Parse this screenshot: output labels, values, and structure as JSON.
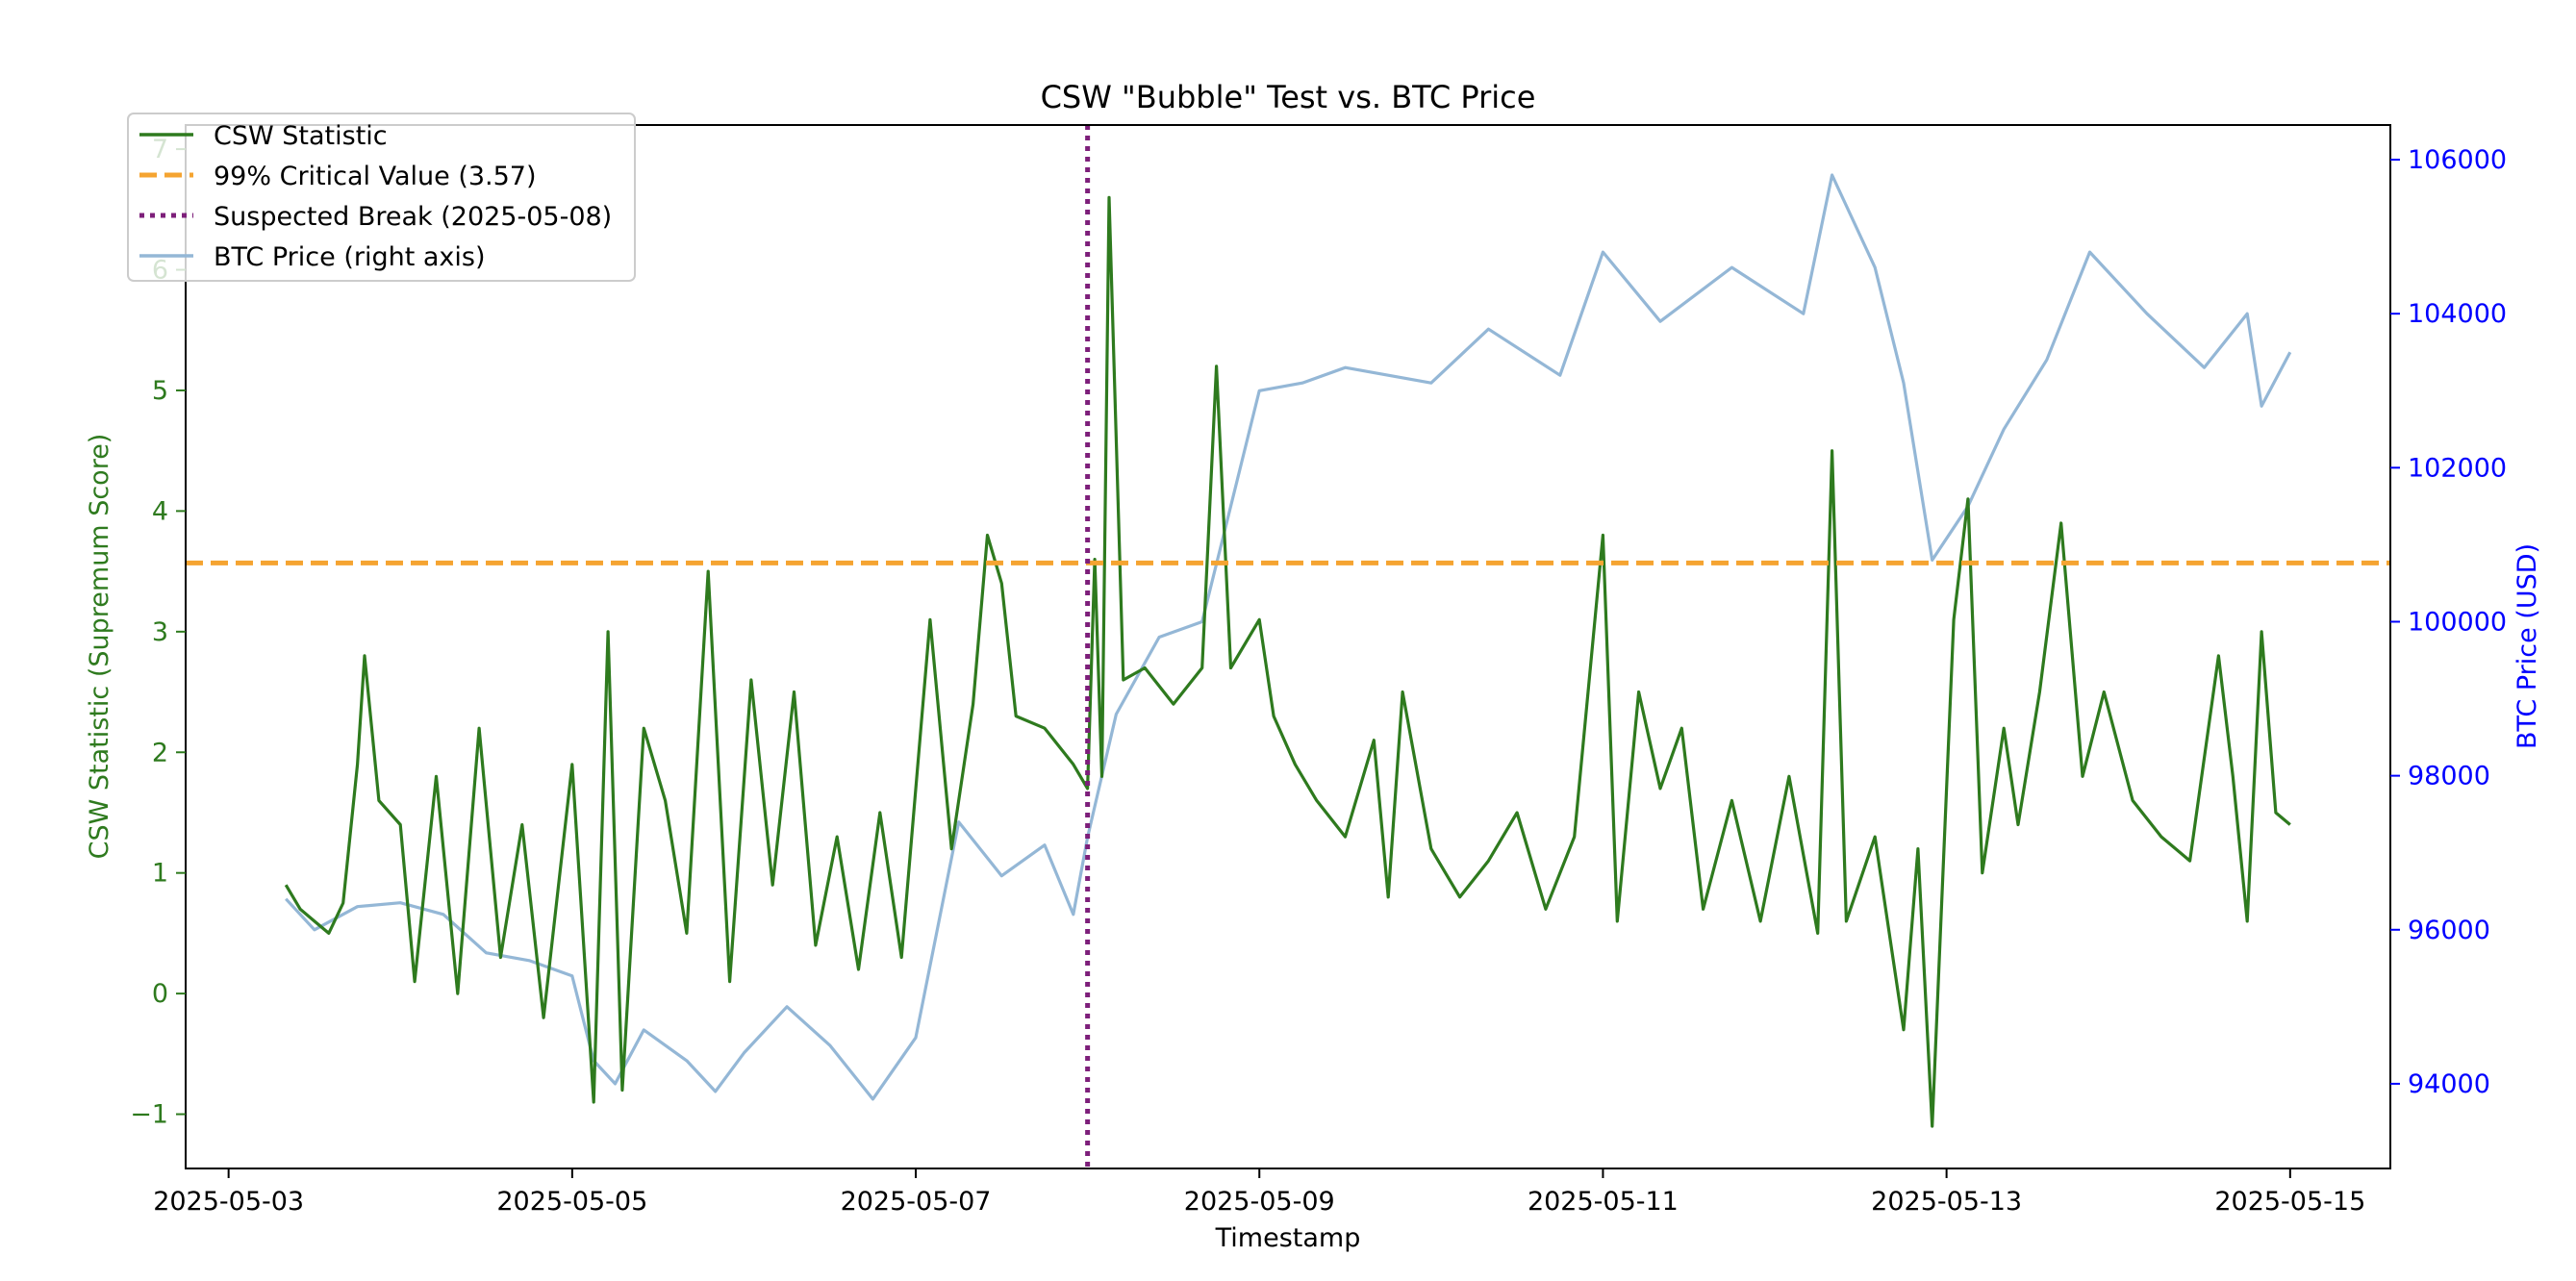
{
  "chart_data": {
    "type": "line",
    "title": "CSW \"Bubble\" Test vs. BTC Price",
    "xlabel": "Timestamp",
    "ylabel_left": "CSW Statistic (Supremum Score)",
    "ylabel_right": "BTC Price (USD)",
    "x_range": [
      "2025-05-02 18:00",
      "2025-05-15 14:00"
    ],
    "x_ticks": [
      "2025-05-03",
      "2025-05-05",
      "2025-05-07",
      "2025-05-09",
      "2025-05-11",
      "2025-05-13",
      "2025-05-15"
    ],
    "ylim_left": [
      -1.45,
      7.2
    ],
    "yticks_left": [
      "−1",
      "0",
      "1",
      "2",
      "3",
      "4",
      "5",
      "6",
      "7"
    ],
    "ylim_right": [
      92900,
      106450
    ],
    "yticks_right": [
      "94000",
      "96000",
      "98000",
      "100000",
      "102000",
      "104000",
      "106000"
    ],
    "grid": false,
    "legend_position": "top-left",
    "critical_value": 3.57,
    "break_date": "2025-05-08 00:00",
    "colors": {
      "csw": "#2e7a1e",
      "critical": "#f5a431",
      "break": "#7d1f7a",
      "btc": "#94b7d6",
      "left_axis": "#2e7a1e",
      "right_axis": "#0000ff"
    },
    "legend": [
      "CSW Statistic",
      "99% Critical Value (3.57)",
      "Suspected Break (2025-05-08)",
      "BTC Price (right axis)"
    ],
    "series": [
      {
        "name": "CSW Statistic",
        "axis": "left",
        "points": [
          [
            "2025-05-03 08:00",
            0.9
          ],
          [
            "2025-05-03 10:00",
            0.7
          ],
          [
            "2025-05-03 12:00",
            0.6
          ],
          [
            "2025-05-03 14:00",
            0.5
          ],
          [
            "2025-05-03 16:00",
            0.75
          ],
          [
            "2025-05-03 18:00",
            1.9
          ],
          [
            "2025-05-03 19:00",
            2.8
          ],
          [
            "2025-05-03 21:00",
            1.6
          ],
          [
            "2025-05-04 00:00",
            1.4
          ],
          [
            "2025-05-04 02:00",
            0.1
          ],
          [
            "2025-05-04 05:00",
            1.8
          ],
          [
            "2025-05-04 08:00",
            0.0
          ],
          [
            "2025-05-04 11:00",
            2.2
          ],
          [
            "2025-05-04 14:00",
            0.3
          ],
          [
            "2025-05-04 17:00",
            1.4
          ],
          [
            "2025-05-04 20:00",
            -0.2
          ],
          [
            "2025-05-05 00:00",
            1.9
          ],
          [
            "2025-05-05 03:00",
            -0.9
          ],
          [
            "2025-05-05 05:00",
            3.0
          ],
          [
            "2025-05-05 07:00",
            -0.8
          ],
          [
            "2025-05-05 10:00",
            2.2
          ],
          [
            "2025-05-05 13:00",
            1.6
          ],
          [
            "2025-05-05 16:00",
            0.5
          ],
          [
            "2025-05-05 19:00",
            3.5
          ],
          [
            "2025-05-05 22:00",
            0.1
          ],
          [
            "2025-05-06 01:00",
            2.6
          ],
          [
            "2025-05-06 04:00",
            0.9
          ],
          [
            "2025-05-06 07:00",
            2.5
          ],
          [
            "2025-05-06 10:00",
            0.4
          ],
          [
            "2025-05-06 13:00",
            1.3
          ],
          [
            "2025-05-06 16:00",
            0.2
          ],
          [
            "2025-05-06 19:00",
            1.5
          ],
          [
            "2025-05-06 22:00",
            0.3
          ],
          [
            "2025-05-07 02:00",
            3.1
          ],
          [
            "2025-05-07 05:00",
            1.2
          ],
          [
            "2025-05-07 08:00",
            2.4
          ],
          [
            "2025-05-07 10:00",
            3.8
          ],
          [
            "2025-05-07 12:00",
            3.4
          ],
          [
            "2025-05-07 14:00",
            2.3
          ],
          [
            "2025-05-07 18:00",
            2.2
          ],
          [
            "2025-05-07 22:00",
            1.9
          ],
          [
            "2025-05-08 00:00",
            1.7
          ],
          [
            "2025-05-08 01:00",
            3.6
          ],
          [
            "2025-05-08 02:00",
            1.8
          ],
          [
            "2025-05-08 03:00",
            6.6
          ],
          [
            "2025-05-08 05:00",
            2.6
          ],
          [
            "2025-05-08 08:00",
            2.7
          ],
          [
            "2025-05-08 12:00",
            2.4
          ],
          [
            "2025-05-08 16:00",
            2.7
          ],
          [
            "2025-05-08 18:00",
            5.2
          ],
          [
            "2025-05-08 20:00",
            2.7
          ],
          [
            "2025-05-09 00:00",
            3.1
          ],
          [
            "2025-05-09 02:00",
            2.3
          ],
          [
            "2025-05-09 05:00",
            1.9
          ],
          [
            "2025-05-09 08:00",
            1.6
          ],
          [
            "2025-05-09 12:00",
            1.3
          ],
          [
            "2025-05-09 16:00",
            2.1
          ],
          [
            "2025-05-09 18:00",
            0.8
          ],
          [
            "2025-05-09 20:00",
            2.5
          ],
          [
            "2025-05-10 00:00",
            1.2
          ],
          [
            "2025-05-10 04:00",
            0.8
          ],
          [
            "2025-05-10 08:00",
            1.1
          ],
          [
            "2025-05-10 12:00",
            1.5
          ],
          [
            "2025-05-10 16:00",
            0.7
          ],
          [
            "2025-05-10 20:00",
            1.3
          ],
          [
            "2025-05-11 00:00",
            3.8
          ],
          [
            "2025-05-11 02:00",
            0.6
          ],
          [
            "2025-05-11 05:00",
            2.5
          ],
          [
            "2025-05-11 08:00",
            1.7
          ],
          [
            "2025-05-11 11:00",
            2.2
          ],
          [
            "2025-05-11 14:00",
            0.7
          ],
          [
            "2025-05-11 18:00",
            1.6
          ],
          [
            "2025-05-11 22:00",
            0.6
          ],
          [
            "2025-05-12 02:00",
            1.8
          ],
          [
            "2025-05-12 06:00",
            0.5
          ],
          [
            "2025-05-12 08:00",
            4.5
          ],
          [
            "2025-05-12 10:00",
            0.6
          ],
          [
            "2025-05-12 14:00",
            1.3
          ],
          [
            "2025-05-12 18:00",
            -0.3
          ],
          [
            "2025-05-12 20:00",
            1.2
          ],
          [
            "2025-05-12 22:00",
            -1.1
          ],
          [
            "2025-05-13 01:00",
            3.1
          ],
          [
            "2025-05-13 03:00",
            4.1
          ],
          [
            "2025-05-13 05:00",
            1.0
          ],
          [
            "2025-05-13 08:00",
            2.2
          ],
          [
            "2025-05-13 10:00",
            1.4
          ],
          [
            "2025-05-13 13:00",
            2.5
          ],
          [
            "2025-05-13 16:00",
            3.9
          ],
          [
            "2025-05-13 19:00",
            1.8
          ],
          [
            "2025-05-13 22:00",
            2.5
          ],
          [
            "2025-05-14 02:00",
            1.6
          ],
          [
            "2025-05-14 06:00",
            1.3
          ],
          [
            "2025-05-14 10:00",
            1.1
          ],
          [
            "2025-05-14 14:00",
            2.8
          ],
          [
            "2025-05-14 16:00",
            1.8
          ],
          [
            "2025-05-14 18:00",
            0.6
          ],
          [
            "2025-05-14 20:00",
            3.0
          ],
          [
            "2025-05-14 22:00",
            1.5
          ],
          [
            "2025-05-15 00:00",
            1.4
          ]
        ]
      },
      {
        "name": "BTC Price (right axis)",
        "axis": "right",
        "points": [
          [
            "2025-05-03 08:00",
            96400
          ],
          [
            "2025-05-03 12:00",
            96000
          ],
          [
            "2025-05-03 18:00",
            96300
          ],
          [
            "2025-05-04 00:00",
            96350
          ],
          [
            "2025-05-04 06:00",
            96200
          ],
          [
            "2025-05-04 12:00",
            95700
          ],
          [
            "2025-05-04 18:00",
            95600
          ],
          [
            "2025-05-05 00:00",
            95400
          ],
          [
            "2025-05-05 03:00",
            94300
          ],
          [
            "2025-05-05 06:00",
            94000
          ],
          [
            "2025-05-05 10:00",
            94700
          ],
          [
            "2025-05-05 16:00",
            94300
          ],
          [
            "2025-05-05 20:00",
            93900
          ],
          [
            "2025-05-06 00:00",
            94400
          ],
          [
            "2025-05-06 06:00",
            95000
          ],
          [
            "2025-05-06 12:00",
            94500
          ],
          [
            "2025-05-06 18:00",
            93800
          ],
          [
            "2025-05-07 00:00",
            94600
          ],
          [
            "2025-05-07 06:00",
            97400
          ],
          [
            "2025-05-07 12:00",
            96700
          ],
          [
            "2025-05-07 18:00",
            97100
          ],
          [
            "2025-05-07 22:00",
            96200
          ],
          [
            "2025-05-08 00:00",
            97200
          ],
          [
            "2025-05-08 04:00",
            98800
          ],
          [
            "2025-05-08 10:00",
            99800
          ],
          [
            "2025-05-08 16:00",
            100000
          ],
          [
            "2025-05-08 20:00",
            101500
          ],
          [
            "2025-05-09 00:00",
            103000
          ],
          [
            "2025-05-09 06:00",
            103100
          ],
          [
            "2025-05-09 12:00",
            103300
          ],
          [
            "2025-05-10 00:00",
            103100
          ],
          [
            "2025-05-10 08:00",
            103800
          ],
          [
            "2025-05-10 18:00",
            103200
          ],
          [
            "2025-05-11 00:00",
            104800
          ],
          [
            "2025-05-11 08:00",
            103900
          ],
          [
            "2025-05-11 18:00",
            104600
          ],
          [
            "2025-05-12 04:00",
            104000
          ],
          [
            "2025-05-12 08:00",
            105800
          ],
          [
            "2025-05-12 14:00",
            104600
          ],
          [
            "2025-05-12 18:00",
            103100
          ],
          [
            "2025-05-12 22:00",
            100800
          ],
          [
            "2025-05-13 03:00",
            101500
          ],
          [
            "2025-05-13 08:00",
            102500
          ],
          [
            "2025-05-13 14:00",
            103400
          ],
          [
            "2025-05-13 20:00",
            104800
          ],
          [
            "2025-05-14 04:00",
            104000
          ],
          [
            "2025-05-14 12:00",
            103300
          ],
          [
            "2025-05-14 18:00",
            104000
          ],
          [
            "2025-05-14 20:00",
            102800
          ],
          [
            "2025-05-15 00:00",
            103500
          ]
        ]
      }
    ]
  }
}
